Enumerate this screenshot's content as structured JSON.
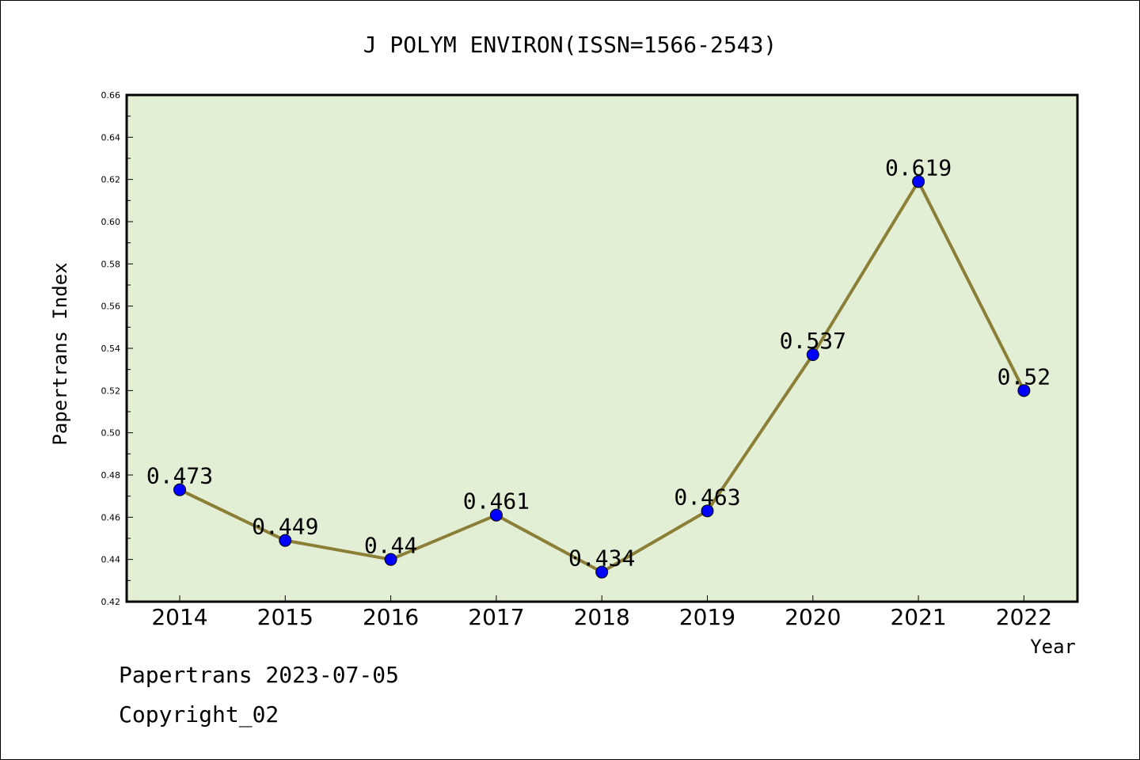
{
  "chart_data": {
    "type": "line",
    "title": "J POLYM ENVIRON(ISSN=1566-2543)",
    "xlabel": "Year",
    "ylabel": "Papertrans Index",
    "categories": [
      "2014",
      "2015",
      "2016",
      "2017",
      "2018",
      "2019",
      "2020",
      "2021",
      "2022"
    ],
    "values": [
      0.473,
      0.449,
      0.44,
      0.461,
      0.434,
      0.463,
      0.537,
      0.619,
      0.52
    ],
    "data_labels": [
      "0.473",
      "0.449",
      "0.44",
      "0.461",
      "0.434",
      "0.463",
      "0.537",
      "0.619",
      "0.52"
    ],
    "ylim": [
      0.42,
      0.66
    ],
    "yticks": [
      "0.42",
      "0.44",
      "0.46",
      "0.48",
      "0.50",
      "0.52",
      "0.54",
      "0.56",
      "0.58",
      "0.60",
      "0.62",
      "0.64",
      "0.66"
    ],
    "grid": false,
    "colors": {
      "plot_bg": "#e2efd5",
      "line": "#8b7f37",
      "marker": "#0000ff"
    }
  },
  "footer": {
    "line1": "Papertrans 2023-07-05",
    "line2": "Copyright_02"
  }
}
